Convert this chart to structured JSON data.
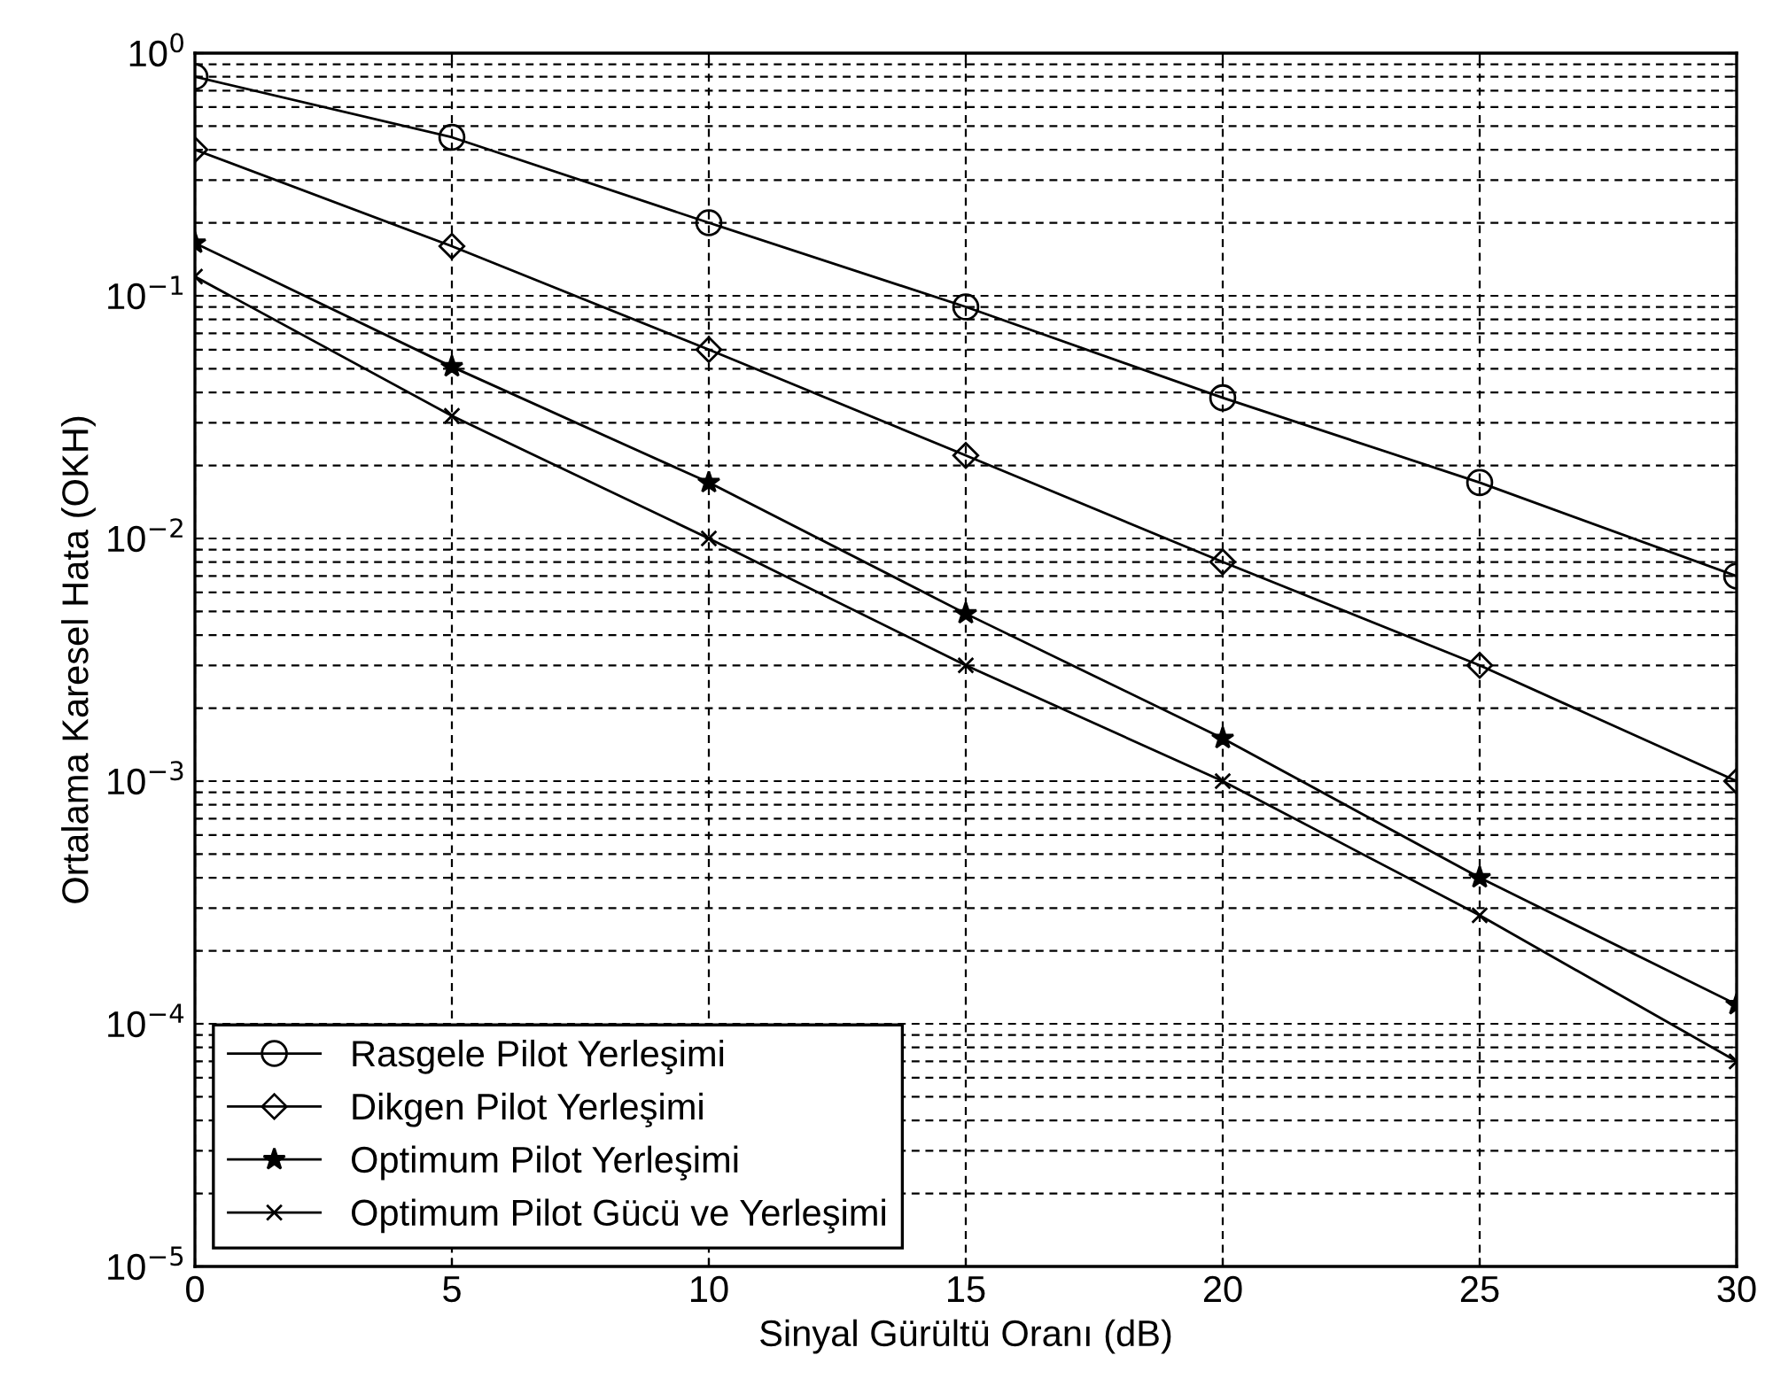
{
  "chart_data": {
    "type": "line",
    "xlabel": "Sinyal Gürültü Oranı (dB)",
    "ylabel": "Ortalama Karesel Hata (OKH)",
    "x": [
      0,
      5,
      10,
      15,
      20,
      25,
      30
    ],
    "series": [
      {
        "name": "Rasgele Pilot Yerleşimi",
        "color": "#000000",
        "marker": "circle",
        "values": [
          0.8,
          0.45,
          0.2,
          0.09,
          0.038,
          0.017,
          0.007
        ]
      },
      {
        "name": "Dikgen Pilot Yerleşimi",
        "color": "#000000",
        "marker": "diamond",
        "values": [
          0.4,
          0.16,
          0.06,
          0.022,
          0.008,
          0.003,
          0.001
        ]
      },
      {
        "name": "Optimum Pilot Yerleşimi",
        "color": "#000000",
        "marker": "star",
        "values": [
          0.165,
          0.051,
          0.017,
          0.0049,
          0.0015,
          0.0004,
          0.00012
        ]
      },
      {
        "name": "Optimum Pilot Gücü ve Yerleşimi",
        "color": "#000000",
        "marker": "cross",
        "values": [
          0.12,
          0.032,
          0.01,
          0.003,
          0.001,
          0.00028,
          7e-05
        ]
      }
    ],
    "log": "y",
    "xlim": [
      0,
      30
    ],
    "ylim": [
      1e-05,
      1
    ],
    "xticks": [
      0,
      5,
      10,
      15,
      20,
      25,
      30
    ],
    "yticks": [
      {
        "value": 1e-05,
        "label": "10$^{−5}$"
      },
      {
        "value": 0.0001,
        "label": "10$^{−4}$"
      },
      {
        "value": 0.001,
        "label": "10$^{−3}$"
      },
      {
        "value": 0.01,
        "label": "10$^{−2}$"
      },
      {
        "value": 0.1,
        "label": "10$^{−1}$"
      },
      {
        "value": 1,
        "label": "10$^{0}$"
      }
    ],
    "grid": true,
    "legend": "bottom left",
    "line_style": "solid"
  }
}
